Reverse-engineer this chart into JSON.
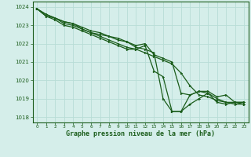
{
  "title": "Graphe pression niveau de la mer (hPa)",
  "background_color": "#d5eeea",
  "line_color": "#1a5c1a",
  "grid_color": "#b8ddd6",
  "xlabel_color": "#1a5c1a",
  "ylim": [
    1017.7,
    1024.3
  ],
  "xlim": [
    -0.5,
    23.5
  ],
  "yticks": [
    1018,
    1019,
    1020,
    1021,
    1022,
    1023,
    1024
  ],
  "xticks": [
    0,
    1,
    2,
    3,
    4,
    5,
    6,
    7,
    8,
    9,
    10,
    11,
    12,
    13,
    14,
    15,
    16,
    17,
    18,
    19,
    20,
    21,
    22,
    23
  ],
  "series": [
    [
      1023.9,
      1023.5,
      1023.4,
      1023.2,
      1023.1,
      1022.8,
      1022.6,
      1022.4,
      1022.2,
      1022.0,
      1021.8,
      1021.7,
      1021.5,
      1021.3,
      1021.1,
      1020.9,
      1020.4,
      1019.7,
      1019.2,
      1019.1,
      1018.9,
      1018.8,
      1018.7,
      1018.7
    ],
    [
      1023.9,
      1023.5,
      1023.3,
      1023.0,
      1022.9,
      1022.7,
      1022.5,
      1022.3,
      1022.1,
      1021.9,
      1021.7,
      1021.7,
      1021.9,
      1020.5,
      1020.2,
      1018.3,
      1018.3,
      1018.7,
      1019.0,
      1019.3,
      1018.8,
      1018.7,
      1018.8,
      1018.7
    ],
    [
      1023.9,
      1023.6,
      1023.4,
      1023.2,
      1023.1,
      1022.9,
      1022.7,
      1022.6,
      1022.4,
      1022.3,
      1022.1,
      1021.8,
      1021.7,
      1021.5,
      1019.0,
      1018.3,
      1018.3,
      1019.2,
      1019.4,
      1019.4,
      1019.1,
      1019.2,
      1018.8,
      1018.8
    ],
    [
      1023.9,
      1023.6,
      1023.4,
      1023.1,
      1023.0,
      1022.8,
      1022.6,
      1022.5,
      1022.4,
      1022.2,
      1022.1,
      1021.9,
      1022.0,
      1021.4,
      1021.2,
      1021.0,
      1019.3,
      1019.2,
      1019.4,
      1019.3,
      1019.0,
      1018.8,
      1018.8,
      1018.8
    ]
  ]
}
